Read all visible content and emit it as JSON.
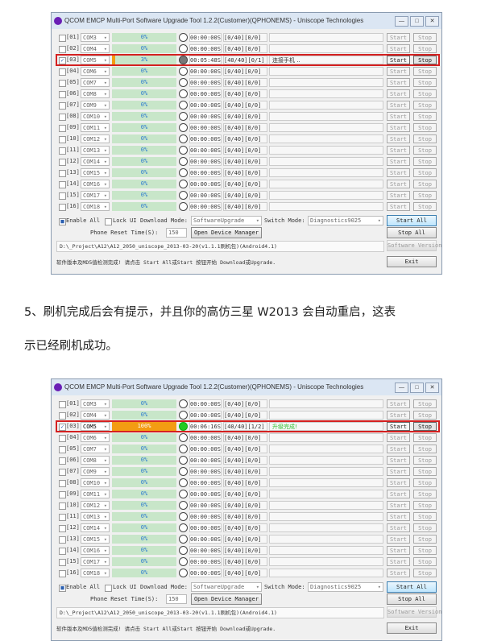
{
  "title": "QCOM EMCP Multi-Port Software Upgrade Tool 1.2.2(Customer)(QPHONEMS) - Uniscope Technologies",
  "window_buttons": [
    "—",
    "□",
    "✕"
  ],
  "colors": {
    "progress_bg": "#c8e6c9",
    "progress_fill": "#f39c12",
    "highlight": "#d42020",
    "done": "#22cc22",
    "busy": "#777777"
  },
  "paragraph": [
    "5、刷机完成后会有提示，并且你的高仿三星 W2013 会自动重启，这表",
    "示已经刷机成功。"
  ],
  "windows": [
    {
      "rows": [
        [
          "[01]",
          "COM3",
          "0%",
          "00:00:00S",
          "[0/40][0/0]",
          "",
          false,
          0,
          "idle"
        ],
        [
          "[02]",
          "COM4",
          "0%",
          "00:00:00S",
          "[0/40][0/0]",
          "",
          false,
          0,
          "idle"
        ],
        [
          "[03]",
          "COM5",
          "3%",
          "00:05:48S",
          "[40/40][0/1]",
          "连接手机 ..",
          true,
          3,
          "busy"
        ],
        [
          "[04]",
          "COM6",
          "0%",
          "00:00:00S",
          "[0/40][0/0]",
          "",
          false,
          0,
          "idle"
        ],
        [
          "[05]",
          "COM7",
          "0%",
          "00:00:00S",
          "[0/40][0/0]",
          "",
          false,
          0,
          "idle"
        ],
        [
          "[06]",
          "COM8",
          "0%",
          "00:00:00S",
          "[0/40][0/0]",
          "",
          false,
          0,
          "idle"
        ],
        [
          "[07]",
          "COM9",
          "0%",
          "00:00:00S",
          "[0/40][0/0]",
          "",
          false,
          0,
          "idle"
        ],
        [
          "[08]",
          "COM10",
          "0%",
          "00:00:00S",
          "[0/40][0/0]",
          "",
          false,
          0,
          "idle"
        ],
        [
          "[09]",
          "COM11",
          "0%",
          "00:00:00S",
          "[0/40][0/0]",
          "",
          false,
          0,
          "idle"
        ],
        [
          "[10]",
          "COM12",
          "0%",
          "00:00:00S",
          "[0/40][0/0]",
          "",
          false,
          0,
          "idle"
        ],
        [
          "[11]",
          "COM13",
          "0%",
          "00:00:00S",
          "[0/40][0/0]",
          "",
          false,
          0,
          "idle"
        ],
        [
          "[12]",
          "COM14",
          "0%",
          "00:00:00S",
          "[0/40][0/0]",
          "",
          false,
          0,
          "idle"
        ],
        [
          "[13]",
          "COM15",
          "0%",
          "00:00:00S",
          "[0/40][0/0]",
          "",
          false,
          0,
          "idle"
        ],
        [
          "[14]",
          "COM16",
          "0%",
          "00:00:00S",
          "[0/40][0/0]",
          "",
          false,
          0,
          "idle"
        ],
        [
          "[15]",
          "COM17",
          "0%",
          "00:00:00S",
          "[0/40][0/0]",
          "",
          false,
          0,
          "idle"
        ],
        [
          "[16]",
          "COM18",
          "0%",
          "00:00:00S",
          "[0/40][0/0]",
          "",
          false,
          0,
          "idle"
        ]
      ],
      "download_mode": "SoftwareUpgrade",
      "switch_mode": "Diagnostics9025"
    },
    {
      "rows": [
        [
          "[01]",
          "COM3",
          "0%",
          "00:00:00S",
          "[0/40][0/0]",
          "",
          false,
          0,
          "idle"
        ],
        [
          "[02]",
          "COM4",
          "0%",
          "00:00:00S",
          "[0/40][0/0]",
          "",
          false,
          0,
          "idle"
        ],
        [
          "[03]",
          "COM5",
          "100%",
          "00:06:16S",
          "[40/40][1/2]",
          "升级完成!",
          true,
          100,
          "done"
        ],
        [
          "[04]",
          "COM6",
          "0%",
          "00:00:00S",
          "[0/40][0/0]",
          "",
          false,
          0,
          "idle"
        ],
        [
          "[05]",
          "COM7",
          "0%",
          "00:00:00S",
          "[0/40][0/0]",
          "",
          false,
          0,
          "idle"
        ],
        [
          "[06]",
          "COM8",
          "0%",
          "00:00:00S",
          "[0/40][0/0]",
          "",
          false,
          0,
          "idle"
        ],
        [
          "[07]",
          "COM9",
          "0%",
          "00:00:00S",
          "[0/40][0/0]",
          "",
          false,
          0,
          "idle"
        ],
        [
          "[08]",
          "COM10",
          "0%",
          "00:00:00S",
          "[0/40][0/0]",
          "",
          false,
          0,
          "idle"
        ],
        [
          "[09]",
          "COM11",
          "0%",
          "00:00:00S",
          "[0/40][0/0]",
          "",
          false,
          0,
          "idle"
        ],
        [
          "[10]",
          "COM12",
          "0%",
          "00:00:00S",
          "[0/40][0/0]",
          "",
          false,
          0,
          "idle"
        ],
        [
          "[11]",
          "COM13",
          "0%",
          "00:00:00S",
          "[0/40][0/0]",
          "",
          false,
          0,
          "idle"
        ],
        [
          "[12]",
          "COM14",
          "0%",
          "00:00:00S",
          "[0/40][0/0]",
          "",
          false,
          0,
          "idle"
        ],
        [
          "[13]",
          "COM15",
          "0%",
          "00:00:00S",
          "[0/40][0/0]",
          "",
          false,
          0,
          "idle"
        ],
        [
          "[14]",
          "COM16",
          "0%",
          "00:00:00S",
          "[0/40][0/0]",
          "",
          false,
          0,
          "idle"
        ],
        [
          "[15]",
          "COM17",
          "0%",
          "00:00:00S",
          "[0/40][0/0]",
          "",
          false,
          0,
          "idle"
        ],
        [
          "[16]",
          "COM18",
          "0%",
          "00:00:00S",
          "[0/40][0/0]",
          "",
          false,
          0,
          "idle"
        ]
      ],
      "download_mode": "SoftwareUpgrade",
      "switch_mode": "Diagnostics9025"
    }
  ],
  "controls": {
    "start": "Start",
    "stop": "Stop",
    "enable_all": "Enable All",
    "lock_ui": "Lock UI",
    "download_mode_label": "Download Mode:",
    "switch_mode_label": "Switch Mode:",
    "start_all": "Start All",
    "stop_all": "Stop All",
    "reset_label": "Phone Reset Time(S):",
    "reset_value": "150",
    "open_device_manager": "Open Device Manager",
    "path": "D:\\_Project\\A12\\A12_2050_uniscope_2013-03-20(v1.1.1刷机包)(Android4.1)",
    "software_version": "Software Version",
    "message": "软件版本及MD5值检测完成! 请点击 Start All或Start 按钮开始 Download或Upgrade.",
    "exit": "Exit"
  }
}
